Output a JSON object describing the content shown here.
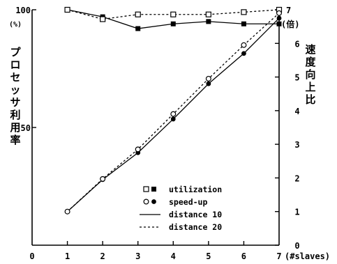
{
  "chart_data": {
    "type": "line",
    "x": [
      1,
      2,
      3,
      4,
      5,
      6,
      7
    ],
    "xlim": [
      0,
      7
    ],
    "x_ticks": [
      "0",
      "1",
      "2",
      "3",
      "4",
      "5",
      "6",
      "7"
    ],
    "x_unit": "(#slaves)",
    "left_axis": {
      "label_chars": [
        "プ",
        "ロ",
        "セ",
        "ッ",
        "サ",
        "利",
        "用",
        "率"
      ],
      "unit": "(%)",
      "ylim": [
        0,
        100
      ],
      "ticks": [
        "0",
        "50",
        "100"
      ]
    },
    "right_axis": {
      "label_chars": [
        "速",
        "度",
        "向",
        "上",
        "比"
      ],
      "unit": "(倍)",
      "ylim": [
        0,
        7
      ],
      "ticks": [
        "0",
        "1",
        "2",
        "3",
        "4",
        "5",
        "6",
        "7"
      ]
    },
    "series": [
      {
        "name": "utilization",
        "variant": "distance 10",
        "axis": "left",
        "marker": "filled-square",
        "dash": "solid",
        "values": [
          100,
          97,
          92,
          94,
          95,
          94,
          94
        ]
      },
      {
        "name": "utilization",
        "variant": "distance 20",
        "axis": "left",
        "marker": "open-square",
        "dash": "dashed",
        "values": [
          100,
          96,
          98,
          98,
          98,
          99,
          100
        ]
      },
      {
        "name": "speed-up",
        "variant": "distance 10",
        "axis": "right",
        "marker": "filled-circle",
        "dash": "solid",
        "values": [
          1,
          1.95,
          2.75,
          3.75,
          4.8,
          5.7,
          6.75
        ]
      },
      {
        "name": "speed-up",
        "variant": "distance 20",
        "axis": "right",
        "marker": "open-circle",
        "dash": "dashed",
        "values": [
          1,
          1.97,
          2.85,
          3.9,
          4.95,
          5.95,
          6.9
        ]
      }
    ],
    "legend": {
      "placement": "bottom-right",
      "entries": [
        {
          "symbol": "open-square,filled-square",
          "label": "utilization"
        },
        {
          "symbol": "open-circle,filled-circle",
          "label": "speed-up"
        },
        {
          "symbol": "solid-line",
          "label": "distance 10"
        },
        {
          "symbol": "dashed-line",
          "label": "distance 20"
        }
      ]
    }
  }
}
